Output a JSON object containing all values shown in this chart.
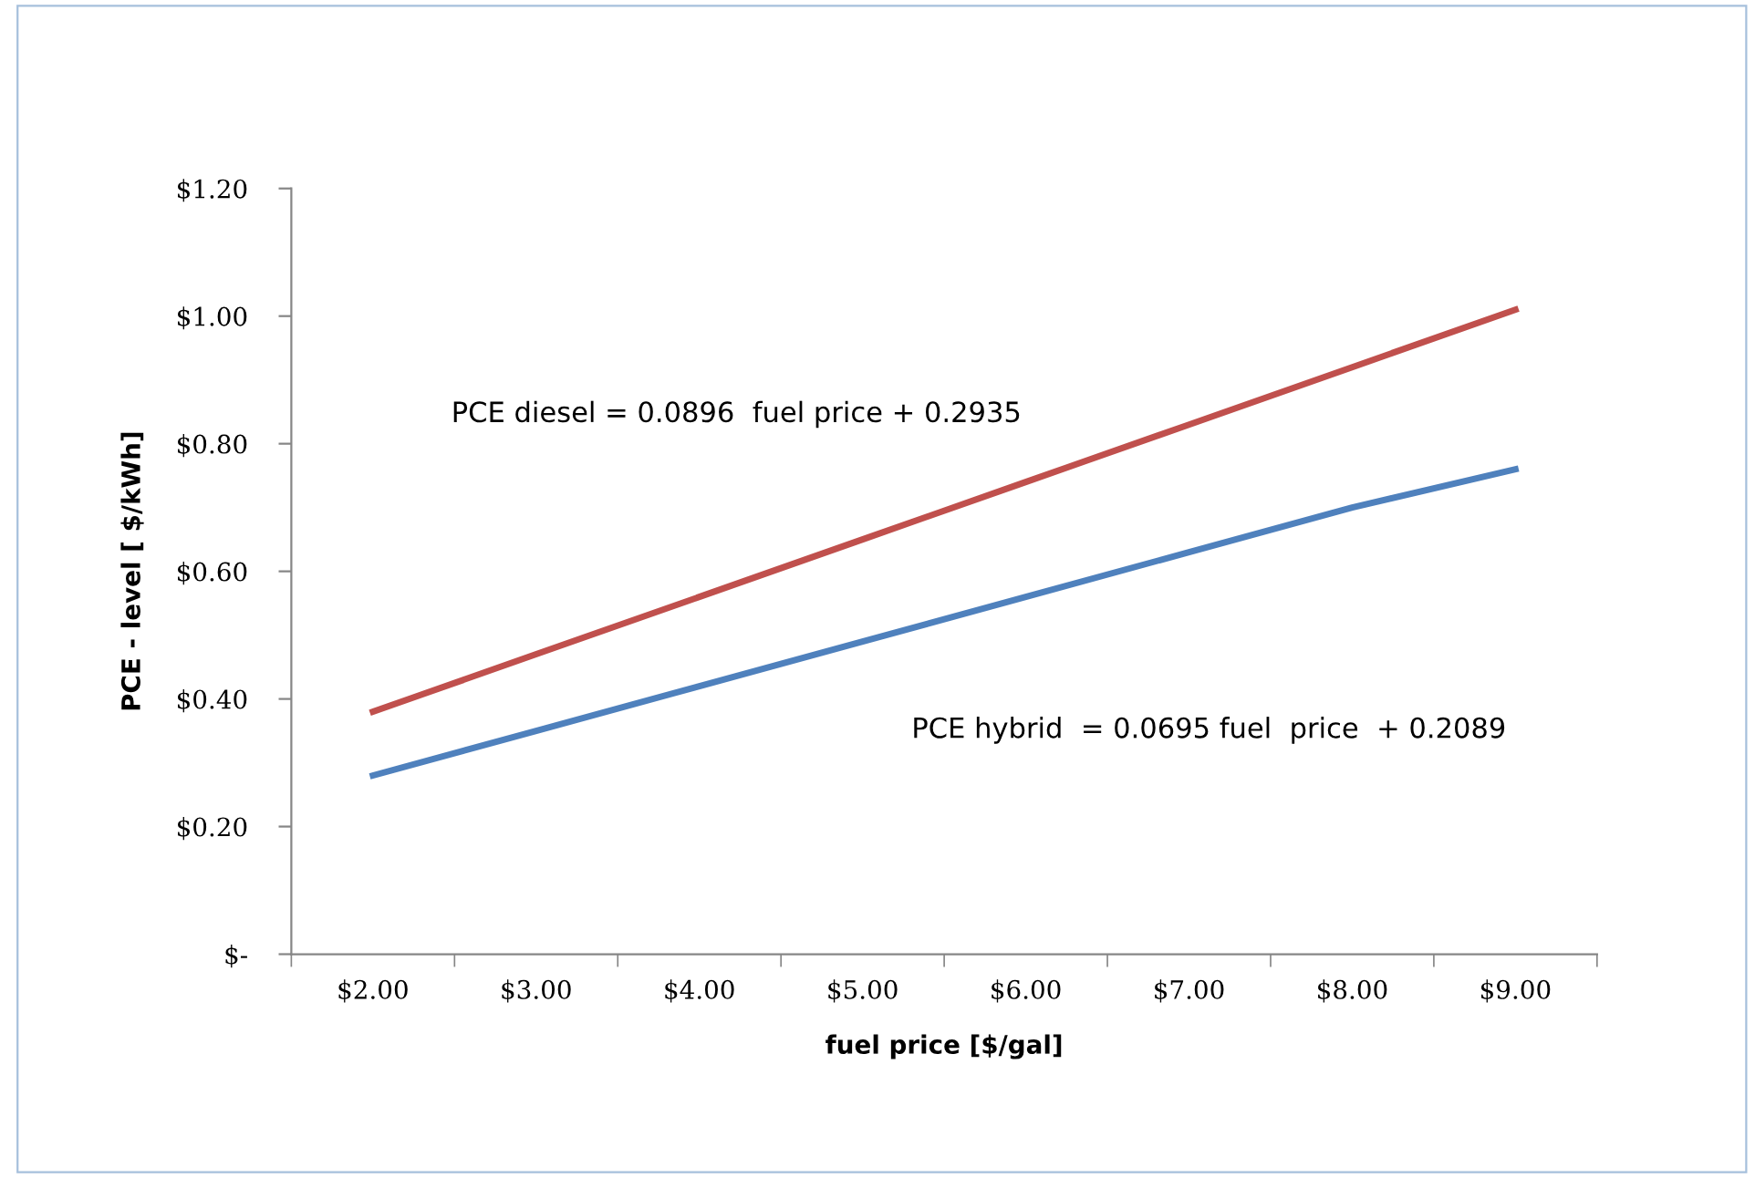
{
  "chart_data": {
    "type": "line",
    "xlabel": "fuel price [$/gal]",
    "ylabel": "PCE - level [ $/kWh]",
    "categories": [
      "$2.00",
      "$3.00",
      "$4.00",
      "$5.00",
      "$6.00",
      "$7.00",
      "$8.00",
      "$9.00"
    ],
    "series": [
      {
        "color": "#c0504d",
        "values": [
          0.38,
          0.47,
          0.56,
          0.65,
          0.74,
          0.83,
          0.92,
          1.01
        ]
      },
      {
        "color": "#4f81bd",
        "values": [
          0.28,
          0.35,
          0.42,
          0.49,
          0.56,
          0.63,
          0.7,
          0.76
        ]
      }
    ],
    "ylim": [
      0,
      1.2
    ],
    "yticks": [
      {
        "value": 0,
        "label": "$-"
      },
      {
        "value": 0.2,
        "label": "$0.20"
      },
      {
        "value": 0.4,
        "label": "$0.40"
      },
      {
        "value": 0.6,
        "label": "$0.60"
      },
      {
        "value": 0.8,
        "label": "$0.80"
      },
      {
        "value": 1.0,
        "label": "$1.00"
      },
      {
        "value": 1.2,
        "label": "$1.20"
      }
    ],
    "annotations": [
      "PCE diesel = 0.0896  fuel price + 0.2935",
      "PCE hybrid  = 0.0695 fuel  price  + 0.2089"
    ],
    "marker": "none",
    "line_style": "solid",
    "grid": false,
    "legend": false
  }
}
